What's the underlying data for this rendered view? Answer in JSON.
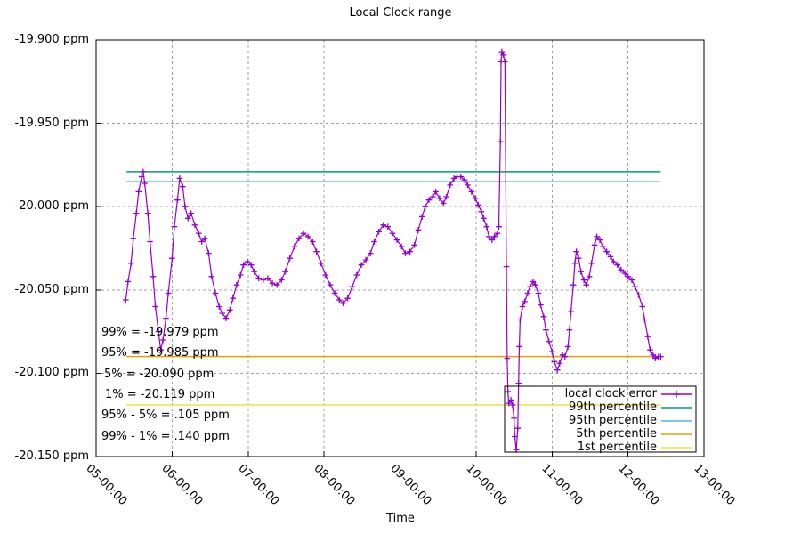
{
  "chart_data": {
    "type": "line",
    "title": "Local Clock range",
    "xlabel": "Time",
    "ylabel": "",
    "grid": true,
    "legend_position": "bottom-right",
    "xlim": [
      5,
      13
    ],
    "ylim": [
      -20.15,
      -19.9
    ],
    "x_ticks": [
      {
        "t": 5,
        "label": "05-00:00"
      },
      {
        "t": 6,
        "label": "06-00:00"
      },
      {
        "t": 7,
        "label": "07-00:00"
      },
      {
        "t": 8,
        "label": "08-00:00"
      },
      {
        "t": 9,
        "label": "09-00:00"
      },
      {
        "t": 10,
        "label": "10-00:00"
      },
      {
        "t": 11,
        "label": "11-00:00"
      },
      {
        "t": 12,
        "label": "12-00:00"
      },
      {
        "t": 13,
        "label": "13-00:00"
      }
    ],
    "y_ticks": [
      {
        "v": -19.9,
        "label": "-19.900 ppm"
      },
      {
        "v": -19.95,
        "label": "-19.950 ppm"
      },
      {
        "v": -20.0,
        "label": "-20.000 ppm"
      },
      {
        "v": -20.05,
        "label": "-20.050 ppm"
      },
      {
        "v": -20.1,
        "label": "-20.100 ppm"
      },
      {
        "v": -20.15,
        "label": "-20.150 ppm"
      }
    ],
    "hline_x_span": [
      5.4,
      12.43
    ],
    "series": [
      {
        "name": "local clock error",
        "color": "#9400D3",
        "style": "linespoints",
        "marker": "plus",
        "points": [
          [
            5.39,
            -20.056
          ],
          [
            5.42,
            -20.045
          ],
          [
            5.46,
            -20.034
          ],
          [
            5.49,
            -20.019
          ],
          [
            5.53,
            -20.004
          ],
          [
            5.56,
            -19.991
          ],
          [
            5.6,
            -19.982
          ],
          [
            5.62,
            -19.979
          ],
          [
            5.64,
            -19.986
          ],
          [
            5.68,
            -20.004
          ],
          [
            5.71,
            -20.021
          ],
          [
            5.75,
            -20.042
          ],
          [
            5.78,
            -20.06
          ],
          [
            5.82,
            -20.075
          ],
          [
            5.85,
            -20.086
          ],
          [
            5.88,
            -20.08
          ],
          [
            5.92,
            -20.067
          ],
          [
            5.95,
            -20.052
          ],
          [
            6.0,
            -20.031
          ],
          [
            6.03,
            -20.012
          ],
          [
            6.07,
            -19.996
          ],
          [
            6.1,
            -19.983
          ],
          [
            6.14,
            -19.988
          ],
          [
            6.17,
            -20.0
          ],
          [
            6.21,
            -20.007
          ],
          [
            6.25,
            -20.004
          ],
          [
            6.3,
            -20.011
          ],
          [
            6.35,
            -20.016
          ],
          [
            6.39,
            -20.021
          ],
          [
            6.43,
            -20.019
          ],
          [
            6.48,
            -20.028
          ],
          [
            6.52,
            -20.042
          ],
          [
            6.57,
            -20.052
          ],
          [
            6.62,
            -20.06
          ],
          [
            6.66,
            -20.064
          ],
          [
            6.71,
            -20.067
          ],
          [
            6.76,
            -20.062
          ],
          [
            6.8,
            -20.055
          ],
          [
            6.85,
            -20.047
          ],
          [
            6.9,
            -20.041
          ],
          [
            6.94,
            -20.035
          ],
          [
            6.99,
            -20.033
          ],
          [
            7.04,
            -20.035
          ],
          [
            7.08,
            -20.039
          ],
          [
            7.14,
            -20.043
          ],
          [
            7.2,
            -20.044
          ],
          [
            7.26,
            -20.043
          ],
          [
            7.32,
            -20.046
          ],
          [
            7.38,
            -20.047
          ],
          [
            7.44,
            -20.044
          ],
          [
            7.49,
            -20.039
          ],
          [
            7.55,
            -20.031
          ],
          [
            7.61,
            -20.024
          ],
          [
            7.67,
            -20.019
          ],
          [
            7.73,
            -20.016
          ],
          [
            7.79,
            -20.018
          ],
          [
            7.85,
            -20.021
          ],
          [
            7.9,
            -20.027
          ],
          [
            7.96,
            -20.034
          ],
          [
            8.02,
            -20.041
          ],
          [
            8.08,
            -20.047
          ],
          [
            8.14,
            -20.052
          ],
          [
            8.2,
            -20.056
          ],
          [
            8.25,
            -20.058
          ],
          [
            8.31,
            -20.055
          ],
          [
            8.37,
            -20.048
          ],
          [
            8.43,
            -20.041
          ],
          [
            8.49,
            -20.035
          ],
          [
            8.55,
            -20.032
          ],
          [
            8.61,
            -20.028
          ],
          [
            8.66,
            -20.021
          ],
          [
            8.72,
            -20.015
          ],
          [
            8.78,
            -20.011
          ],
          [
            8.84,
            -20.012
          ],
          [
            8.9,
            -20.016
          ],
          [
            8.96,
            -20.02
          ],
          [
            9.02,
            -20.024
          ],
          [
            9.07,
            -20.028
          ],
          [
            9.13,
            -20.027
          ],
          [
            9.19,
            -20.023
          ],
          [
            9.24,
            -20.014
          ],
          [
            9.29,
            -20.006
          ],
          [
            9.33,
            -20.0
          ],
          [
            9.38,
            -19.996
          ],
          [
            9.43,
            -19.994
          ],
          [
            9.47,
            -19.991
          ],
          [
            9.52,
            -19.995
          ],
          [
            9.57,
            -19.998
          ],
          [
            9.61,
            -19.994
          ],
          [
            9.66,
            -19.987
          ],
          [
            9.71,
            -19.983
          ],
          [
            9.75,
            -19.982
          ],
          [
            9.8,
            -19.982
          ],
          [
            9.85,
            -19.984
          ],
          [
            9.89,
            -19.987
          ],
          [
            9.94,
            -19.991
          ],
          [
            9.99,
            -19.995
          ],
          [
            10.03,
            -19.999
          ],
          [
            10.07,
            -20.003
          ],
          [
            10.1,
            -20.007
          ],
          [
            10.14,
            -20.012
          ],
          [
            10.17,
            -20.018
          ],
          [
            10.21,
            -20.02
          ],
          [
            10.24,
            -20.018
          ],
          [
            10.28,
            -20.016
          ],
          [
            10.3,
            -20.012
          ],
          [
            10.32,
            -19.961
          ],
          [
            10.33,
            -19.913
          ],
          [
            10.34,
            -19.907
          ],
          [
            10.36,
            -19.909
          ],
          [
            10.38,
            -19.913
          ],
          [
            10.4,
            -20.036
          ],
          [
            10.41,
            -20.091
          ],
          [
            10.42,
            -20.111
          ],
          [
            10.43,
            -20.118
          ],
          [
            10.46,
            -20.116
          ],
          [
            10.48,
            -20.119
          ],
          [
            10.5,
            -20.127
          ],
          [
            10.51,
            -20.138
          ],
          [
            10.53,
            -20.146
          ],
          [
            10.55,
            -20.133
          ],
          [
            10.56,
            -20.106
          ],
          [
            10.57,
            -20.084
          ],
          [
            10.58,
            -20.068
          ],
          [
            10.61,
            -20.06
          ],
          [
            10.64,
            -20.057
          ],
          [
            10.68,
            -20.052
          ],
          [
            10.71,
            -20.048
          ],
          [
            10.75,
            -20.045
          ],
          [
            10.78,
            -20.047
          ],
          [
            10.82,
            -20.052
          ],
          [
            10.85,
            -20.059
          ],
          [
            10.89,
            -20.066
          ],
          [
            10.92,
            -20.074
          ],
          [
            10.96,
            -20.081
          ],
          [
            11.0,
            -20.087
          ],
          [
            11.03,
            -20.093
          ],
          [
            11.07,
            -20.098
          ],
          [
            11.1,
            -20.094
          ],
          [
            11.14,
            -20.089
          ],
          [
            11.17,
            -20.09
          ],
          [
            11.21,
            -20.084
          ],
          [
            11.23,
            -20.074
          ],
          [
            11.25,
            -20.063
          ],
          [
            11.28,
            -20.047
          ],
          [
            11.3,
            -20.034
          ],
          [
            11.32,
            -20.027
          ],
          [
            11.35,
            -20.031
          ],
          [
            11.38,
            -20.039
          ],
          [
            11.42,
            -20.044
          ],
          [
            11.45,
            -20.047
          ],
          [
            11.49,
            -20.042
          ],
          [
            11.52,
            -20.034
          ],
          [
            11.56,
            -20.023
          ],
          [
            11.59,
            -20.018
          ],
          [
            11.63,
            -20.02
          ],
          [
            11.67,
            -20.024
          ],
          [
            11.72,
            -20.027
          ],
          [
            11.77,
            -20.03
          ],
          [
            11.81,
            -20.033
          ],
          [
            11.86,
            -20.035
          ],
          [
            11.91,
            -20.038
          ],
          [
            11.96,
            -20.04
          ],
          [
            12.0,
            -20.042
          ],
          [
            12.05,
            -20.044
          ],
          [
            12.09,
            -20.048
          ],
          [
            12.14,
            -20.053
          ],
          [
            12.19,
            -20.06
          ],
          [
            12.22,
            -20.068
          ],
          [
            12.26,
            -20.078
          ],
          [
            12.29,
            -20.086
          ],
          [
            12.33,
            -20.089
          ],
          [
            12.36,
            -20.091
          ],
          [
            12.4,
            -20.09
          ],
          [
            12.43,
            -20.09
          ]
        ]
      },
      {
        "name": "99th percentile",
        "color": "#009E73",
        "style": "hline",
        "value": -19.979
      },
      {
        "name": "95th percentile",
        "color": "#56B4E9",
        "style": "hline",
        "value": -19.985
      },
      {
        "name": "5th percentile",
        "color": "#E69F00",
        "style": "hline",
        "value": -20.09
      },
      {
        "name": "1st percentile",
        "color": "#F0E442",
        "style": "hline",
        "value": -20.119
      }
    ],
    "annotations": [
      "99% = -19.979 ppm",
      "95% = -19.985 ppm",
      "5% = -20.090 ppm",
      "1% = -20.119 ppm",
      "95% - 5% = .105 ppm",
      "99% - 1% = .140 ppm"
    ],
    "colors": {
      "background": "#ffffff",
      "border": "#000000",
      "grid": "#a0a0a0",
      "text": "#000000"
    }
  }
}
